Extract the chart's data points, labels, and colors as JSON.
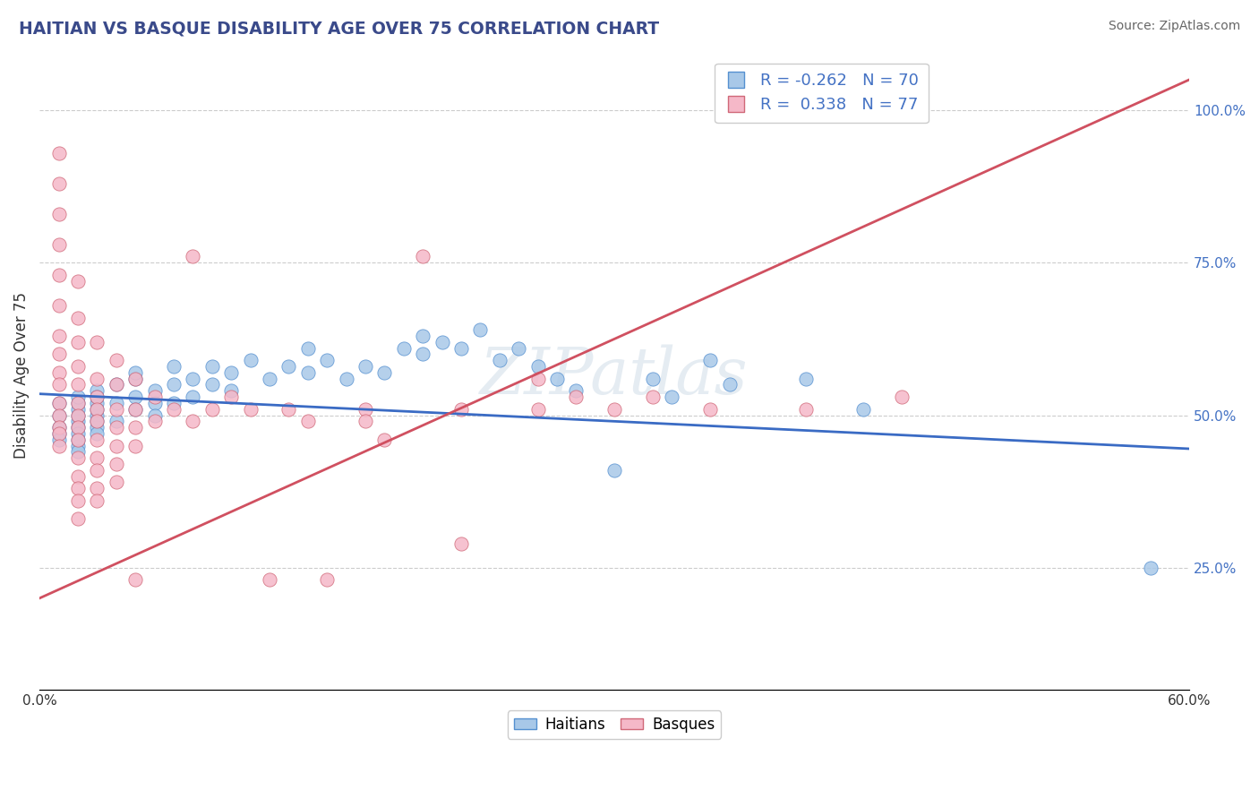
{
  "title": "HAITIAN VS BASQUE DISABILITY AGE OVER 75 CORRELATION CHART",
  "source_text": "Source: ZipAtlas.com",
  "ylabel": "Disability Age Over 75",
  "x_min": 0.0,
  "x_max": 0.6,
  "y_min": 0.05,
  "y_max": 1.08,
  "y_tick_labels_right": [
    "25.0%",
    "50.0%",
    "75.0%",
    "100.0%"
  ],
  "y_tick_vals_right": [
    0.25,
    0.5,
    0.75,
    1.0
  ],
  "haitian_color": "#a8c8e8",
  "basque_color": "#f5b8c8",
  "haitian_edge_color": "#5590d0",
  "basque_edge_color": "#d06878",
  "haitian_line_color": "#3a6bc4",
  "basque_line_color": "#d05060",
  "R_haitian": -0.262,
  "N_haitian": 70,
  "R_basque": 0.338,
  "N_basque": 77,
  "legend_labels": [
    "Haitians",
    "Basques"
  ],
  "watermark": "ZIPatlas",
  "title_color": "#3a4a8a",
  "axis_label_color": "#333333",
  "right_axis_color": "#4472c4",
  "source_color": "#666666",
  "grid_color": "#cccccc",
  "haitian_points": [
    [
      0.01,
      0.5
    ],
    [
      0.01,
      0.48
    ],
    [
      0.01,
      0.47
    ],
    [
      0.01,
      0.52
    ],
    [
      0.01,
      0.46
    ],
    [
      0.02,
      0.51
    ],
    [
      0.02,
      0.49
    ],
    [
      0.02,
      0.5
    ],
    [
      0.02,
      0.48
    ],
    [
      0.02,
      0.47
    ],
    [
      0.02,
      0.45
    ],
    [
      0.02,
      0.52
    ],
    [
      0.02,
      0.46
    ],
    [
      0.02,
      0.53
    ],
    [
      0.02,
      0.44
    ],
    [
      0.03,
      0.54
    ],
    [
      0.03,
      0.5
    ],
    [
      0.03,
      0.52
    ],
    [
      0.03,
      0.48
    ],
    [
      0.03,
      0.51
    ],
    [
      0.03,
      0.53
    ],
    [
      0.03,
      0.49
    ],
    [
      0.03,
      0.47
    ],
    [
      0.04,
      0.55
    ],
    [
      0.04,
      0.52
    ],
    [
      0.04,
      0.49
    ],
    [
      0.05,
      0.56
    ],
    [
      0.05,
      0.53
    ],
    [
      0.05,
      0.51
    ],
    [
      0.05,
      0.57
    ],
    [
      0.06,
      0.54
    ],
    [
      0.06,
      0.52
    ],
    [
      0.06,
      0.5
    ],
    [
      0.07,
      0.55
    ],
    [
      0.07,
      0.58
    ],
    [
      0.07,
      0.52
    ],
    [
      0.08,
      0.56
    ],
    [
      0.08,
      0.53
    ],
    [
      0.09,
      0.58
    ],
    [
      0.09,
      0.55
    ],
    [
      0.1,
      0.57
    ],
    [
      0.1,
      0.54
    ],
    [
      0.11,
      0.59
    ],
    [
      0.12,
      0.56
    ],
    [
      0.13,
      0.58
    ],
    [
      0.14,
      0.61
    ],
    [
      0.14,
      0.57
    ],
    [
      0.15,
      0.59
    ],
    [
      0.16,
      0.56
    ],
    [
      0.17,
      0.58
    ],
    [
      0.18,
      0.57
    ],
    [
      0.19,
      0.61
    ],
    [
      0.2,
      0.63
    ],
    [
      0.2,
      0.6
    ],
    [
      0.21,
      0.62
    ],
    [
      0.22,
      0.61
    ],
    [
      0.23,
      0.64
    ],
    [
      0.24,
      0.59
    ],
    [
      0.25,
      0.61
    ],
    [
      0.26,
      0.58
    ],
    [
      0.27,
      0.56
    ],
    [
      0.28,
      0.54
    ],
    [
      0.3,
      0.41
    ],
    [
      0.32,
      0.56
    ],
    [
      0.33,
      0.53
    ],
    [
      0.35,
      0.59
    ],
    [
      0.36,
      0.55
    ],
    [
      0.4,
      0.56
    ],
    [
      0.43,
      0.51
    ],
    [
      0.58,
      0.25
    ]
  ],
  "basque_points": [
    [
      0.01,
      0.93
    ],
    [
      0.01,
      0.88
    ],
    [
      0.01,
      0.83
    ],
    [
      0.01,
      0.78
    ],
    [
      0.01,
      0.73
    ],
    [
      0.01,
      0.68
    ],
    [
      0.01,
      0.63
    ],
    [
      0.01,
      0.6
    ],
    [
      0.01,
      0.57
    ],
    [
      0.01,
      0.55
    ],
    [
      0.01,
      0.52
    ],
    [
      0.01,
      0.5
    ],
    [
      0.01,
      0.48
    ],
    [
      0.01,
      0.47
    ],
    [
      0.01,
      0.45
    ],
    [
      0.02,
      0.72
    ],
    [
      0.02,
      0.66
    ],
    [
      0.02,
      0.62
    ],
    [
      0.02,
      0.58
    ],
    [
      0.02,
      0.55
    ],
    [
      0.02,
      0.52
    ],
    [
      0.02,
      0.5
    ],
    [
      0.02,
      0.48
    ],
    [
      0.02,
      0.46
    ],
    [
      0.02,
      0.43
    ],
    [
      0.02,
      0.4
    ],
    [
      0.02,
      0.38
    ],
    [
      0.02,
      0.36
    ],
    [
      0.02,
      0.33
    ],
    [
      0.03,
      0.62
    ],
    [
      0.03,
      0.56
    ],
    [
      0.03,
      0.53
    ],
    [
      0.03,
      0.51
    ],
    [
      0.03,
      0.49
    ],
    [
      0.03,
      0.46
    ],
    [
      0.03,
      0.43
    ],
    [
      0.03,
      0.41
    ],
    [
      0.03,
      0.38
    ],
    [
      0.03,
      0.36
    ],
    [
      0.04,
      0.59
    ],
    [
      0.04,
      0.55
    ],
    [
      0.04,
      0.51
    ],
    [
      0.04,
      0.48
    ],
    [
      0.04,
      0.45
    ],
    [
      0.04,
      0.42
    ],
    [
      0.04,
      0.39
    ],
    [
      0.05,
      0.56
    ],
    [
      0.05,
      0.51
    ],
    [
      0.05,
      0.48
    ],
    [
      0.05,
      0.45
    ],
    [
      0.05,
      0.23
    ],
    [
      0.06,
      0.53
    ],
    [
      0.06,
      0.49
    ],
    [
      0.07,
      0.51
    ],
    [
      0.08,
      0.76
    ],
    [
      0.08,
      0.49
    ],
    [
      0.09,
      0.51
    ],
    [
      0.1,
      0.53
    ],
    [
      0.11,
      0.51
    ],
    [
      0.12,
      0.23
    ],
    [
      0.13,
      0.51
    ],
    [
      0.14,
      0.49
    ],
    [
      0.15,
      0.23
    ],
    [
      0.17,
      0.51
    ],
    [
      0.17,
      0.49
    ],
    [
      0.18,
      0.46
    ],
    [
      0.2,
      0.76
    ],
    [
      0.22,
      0.51
    ],
    [
      0.22,
      0.29
    ],
    [
      0.26,
      0.56
    ],
    [
      0.26,
      0.51
    ],
    [
      0.28,
      0.53
    ],
    [
      0.3,
      0.51
    ],
    [
      0.32,
      0.53
    ],
    [
      0.35,
      0.51
    ],
    [
      0.4,
      0.51
    ],
    [
      0.45,
      0.53
    ]
  ]
}
